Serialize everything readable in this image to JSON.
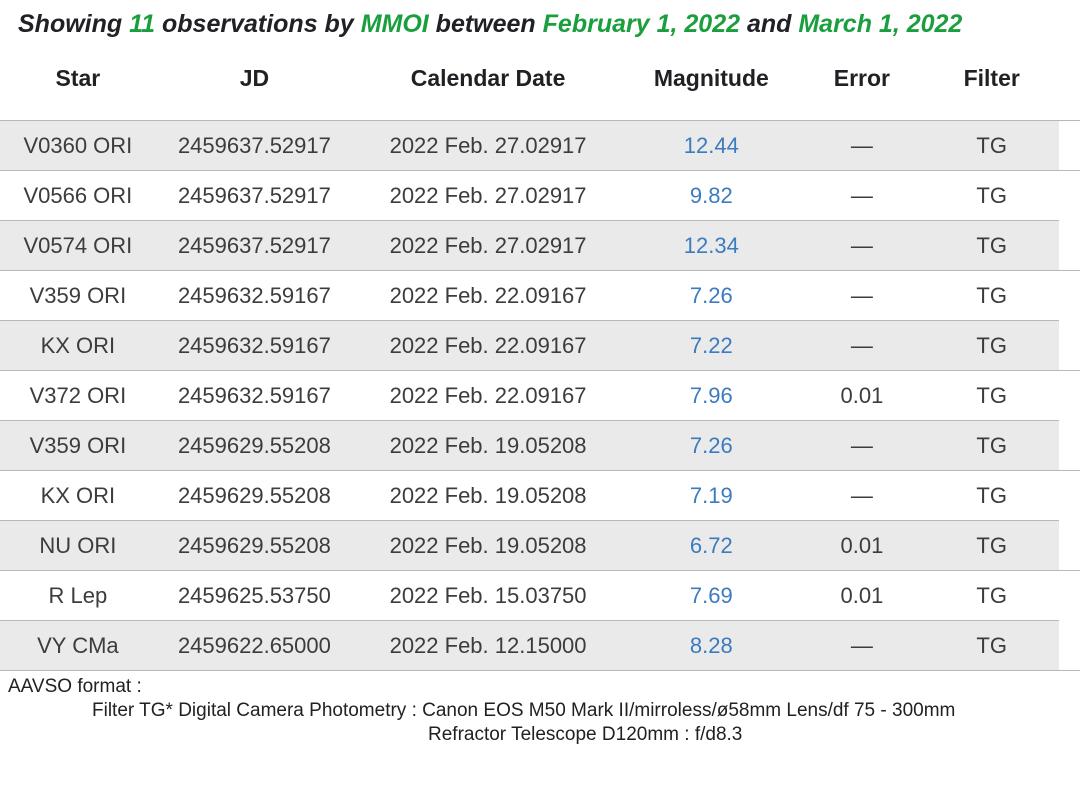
{
  "heading": {
    "t_showing": "Showing ",
    "count": "11",
    "t_obs_by": " observations by ",
    "observer": "MMOI",
    "t_between": " between ",
    "date_start": "February 1, 2022",
    "t_and": " and ",
    "date_end": "March 1, 2022",
    "highlight_color": "#1a9e3e"
  },
  "table": {
    "headers": {
      "star": "Star",
      "jd": "JD",
      "date": "Calendar Date",
      "mag": "Magnitude",
      "err": "Error",
      "filt": "Filter"
    },
    "magnitude_color": "#3b7bbf",
    "row_odd_bg": "#eaeaea",
    "row_even_bg": "#ffffff",
    "border_color": "#b8b8b8",
    "dash": "—",
    "rows": [
      {
        "star": "V0360 ORI",
        "jd": "2459637.52917",
        "date": "2022 Feb. 27.02917",
        "mag": "12.44",
        "err": "—",
        "filt": "TG"
      },
      {
        "star": "V0566 ORI",
        "jd": "2459637.52917",
        "date": "2022 Feb. 27.02917",
        "mag": "9.82",
        "err": "—",
        "filt": "TG"
      },
      {
        "star": "V0574 ORI",
        "jd": "2459637.52917",
        "date": "2022 Feb. 27.02917",
        "mag": "12.34",
        "err": "—",
        "filt": "TG"
      },
      {
        "star": "V359 ORI",
        "jd": "2459632.59167",
        "date": "2022 Feb. 22.09167",
        "mag": "7.26",
        "err": "—",
        "filt": "TG"
      },
      {
        "star": "KX ORI",
        "jd": "2459632.59167",
        "date": "2022 Feb. 22.09167",
        "mag": "7.22",
        "err": "—",
        "filt": "TG"
      },
      {
        "star": "V372 ORI",
        "jd": "2459632.59167",
        "date": "2022 Feb. 22.09167",
        "mag": "7.96",
        "err": "0.01",
        "filt": "TG"
      },
      {
        "star": "V359 ORI",
        "jd": "2459629.55208",
        "date": "2022 Feb. 19.05208",
        "mag": "7.26",
        "err": "—",
        "filt": "TG"
      },
      {
        "star": "KX ORI",
        "jd": "2459629.55208",
        "date": "2022 Feb. 19.05208",
        "mag": "7.19",
        "err": "—",
        "filt": "TG"
      },
      {
        "star": "NU ORI",
        "jd": "2459629.55208",
        "date": "2022 Feb. 19.05208",
        "mag": "6.72",
        "err": "0.01",
        "filt": "TG"
      },
      {
        "star": "R Lep",
        "jd": "2459625.53750",
        "date": "2022 Feb. 15.03750",
        "mag": "7.69",
        "err": "0.01",
        "filt": "TG"
      },
      {
        "star": "VY CMa",
        "jd": "2459622.65000",
        "date": "2022 Feb. 12.15000",
        "mag": "8.28",
        "err": "—",
        "filt": "TG"
      }
    ]
  },
  "footer": {
    "line1": "AAVSO format :",
    "line2": "Filter TG* Digital Camera Photometry :  Canon EOS M50 Mark II/mirroless/ø58mm Lens/df 75 - 300mm",
    "line3": "Refractor Telescope D120mm : f/d8.3"
  }
}
